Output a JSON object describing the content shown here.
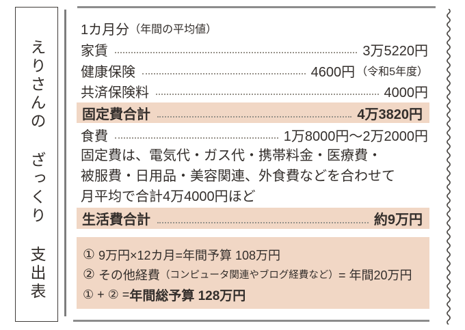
{
  "page": {
    "title_vertical": "えりさんの ざっくり 支出表",
    "header_note_main": "1カ月分",
    "header_note_small": "（年間の平均値）"
  },
  "rows": [
    {
      "label": "家賃",
      "value": "3万5220円"
    },
    {
      "label": "健康保険",
      "value": "4600円",
      "note": "（令和5年度）"
    },
    {
      "label": "共済保険料",
      "value": "4000円"
    },
    {
      "label": "固定費合計",
      "value": "4万3820円"
    },
    {
      "label": "食費",
      "value": "1万8000円～2万2000円"
    }
  ],
  "paragraph": [
    "固定費は、電気代・ガス代・携帯料金・医療費・",
    "被服費・日用品・美容関連、外食費などを合わせて",
    "月平均で合計4万4000円ほど"
  ],
  "total_row": {
    "label": "生活費合計",
    "value": "約9万円"
  },
  "summary": {
    "line1": {
      "num": "①",
      "text": "9万円×12カ月=年間予算 108万円"
    },
    "line2": {
      "num": "②",
      "text": "その他経費",
      "small": "（コンピュータ関連やブログ経費など）",
      "tail": "= 年間20万円"
    },
    "line3": {
      "prefix": "① + ② = ",
      "bold": "年間総予算 128万円"
    }
  },
  "colors": {
    "highlight": "#f1d7c5",
    "rule_gray": "#8c8c8c",
    "text": "#332e2b"
  }
}
